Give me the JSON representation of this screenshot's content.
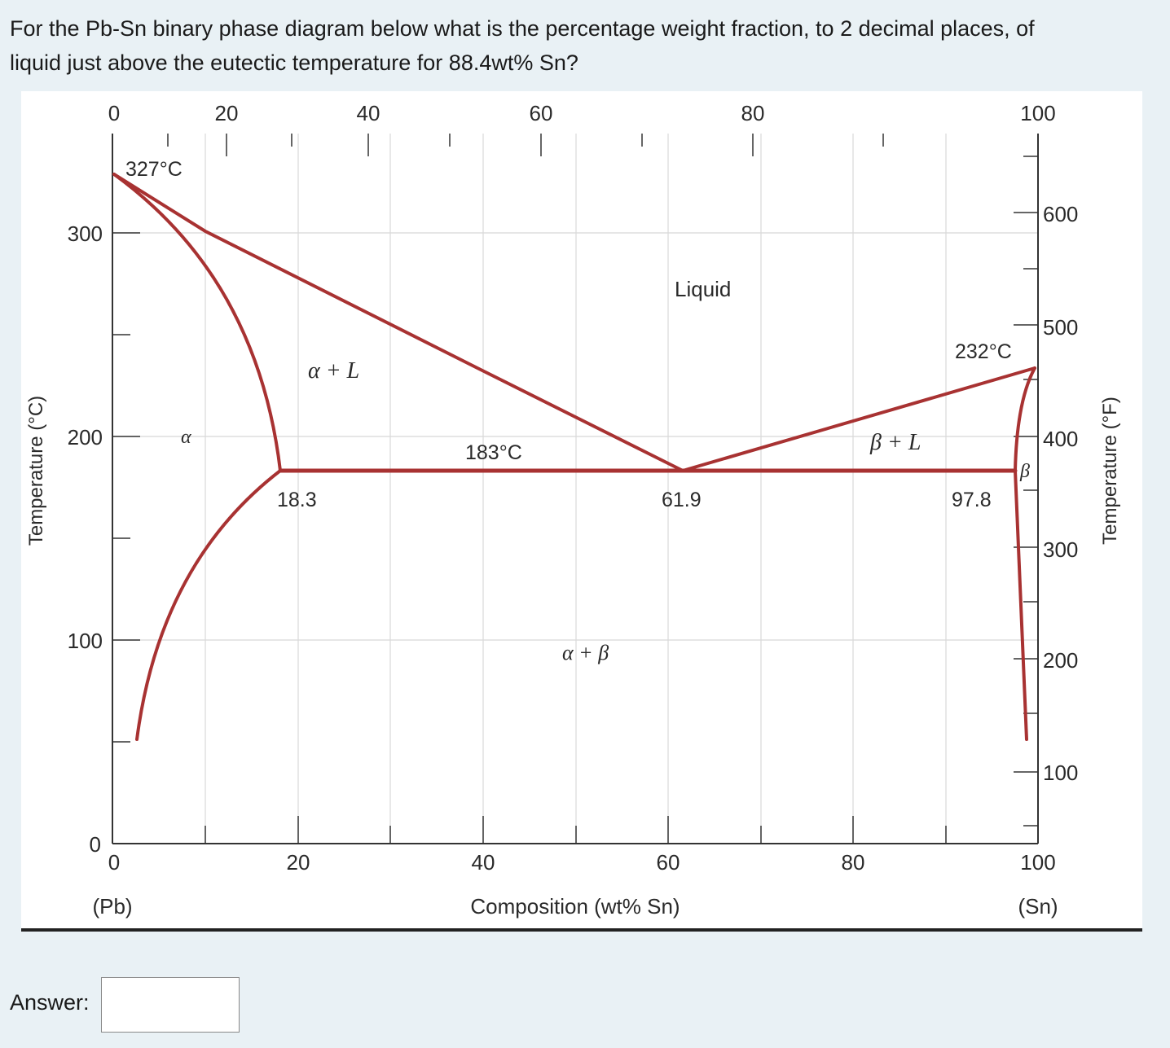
{
  "question": {
    "line1": "For the Pb-Sn binary phase diagram below what is the percentage weight fraction, to 2 decimal places, of",
    "line2": "liquid just above the eutectic temperature for 88.4wt% Sn?"
  },
  "answer": {
    "label": "Answer:",
    "value": ""
  },
  "diagram": {
    "x_axis": {
      "label": "Composition (wt% Sn)",
      "left_end": "(Pb)",
      "right_end": "(Sn)",
      "top_ticks": [
        "0",
        "20",
        "40",
        "60",
        "80",
        "100"
      ],
      "bottom_ticks": [
        "0",
        "20",
        "40",
        "60",
        "80",
        "100"
      ]
    },
    "y_axis_left": {
      "label": "Temperature (°C)",
      "ticks": [
        "0",
        "100",
        "200",
        "300"
      ]
    },
    "y_axis_right": {
      "label": "Temperature (°F)",
      "ticks": [
        "100",
        "200",
        "300",
        "400",
        "500",
        "600"
      ]
    },
    "annotations": {
      "pb_melt": "327°C",
      "sn_melt": "232°C",
      "eutectic_temp": "183°C",
      "alpha_limit": "18.3",
      "eutectic_comp": "61.9",
      "beta_limit": "97.8"
    },
    "phase_labels": {
      "liquid": "Liquid",
      "alpha_plus_l": "α + L",
      "beta_plus_l": "β + L",
      "alpha": "α",
      "beta": "β",
      "alpha_plus_beta": "α + β"
    },
    "colors": {
      "phase_line": "#a83232",
      "grid": "#d8d8d8",
      "axis": "#333333"
    }
  }
}
